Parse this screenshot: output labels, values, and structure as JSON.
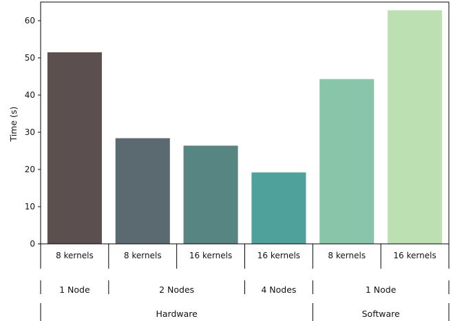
{
  "chart_data": {
    "type": "bar",
    "title": "",
    "xlabel": "",
    "ylabel": "Time (s)",
    "ylim": [
      0,
      65
    ],
    "yticks": [
      0,
      10,
      20,
      30,
      40,
      50,
      60
    ],
    "grid": false,
    "categories": [
      "8 kernels",
      "8 kernels",
      "16 kernels",
      "16 kernels",
      "8 kernels",
      "16 kernels"
    ],
    "values": [
      51.5,
      28.4,
      26.4,
      19.2,
      44.3,
      62.8
    ],
    "colors": [
      "#5b4f50",
      "#5a6a70",
      "#568582",
      "#4fa29b",
      "#88c5a9",
      "#bde0b2"
    ],
    "groups_level1": [
      {
        "label": "1 Node",
        "span": [
          0,
          0
        ]
      },
      {
        "label": "2 Nodes",
        "span": [
          1,
          2
        ]
      },
      {
        "label": "4 Nodes",
        "span": [
          3,
          3
        ]
      },
      {
        "label": "1 Node",
        "span": [
          4,
          5
        ]
      }
    ],
    "groups_level2": [
      {
        "label": "Hardware",
        "span": [
          0,
          3
        ]
      },
      {
        "label": "Software",
        "span": [
          4,
          5
        ]
      }
    ]
  }
}
